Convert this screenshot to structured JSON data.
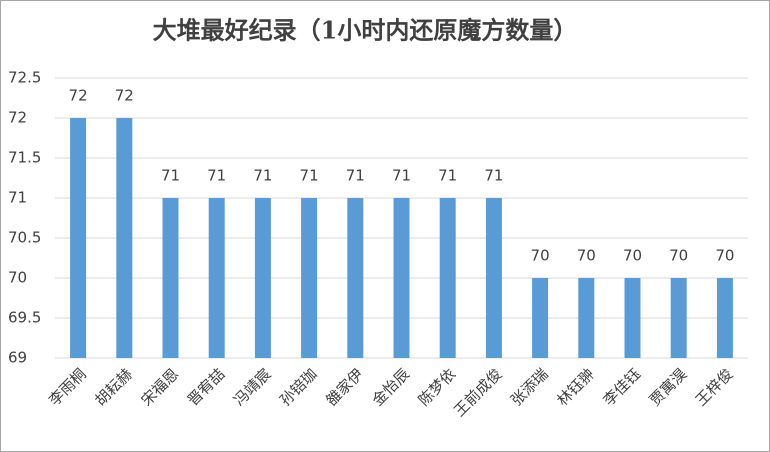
{
  "chart_data": {
    "type": "bar",
    "title": "大堆最好纪录（1小时内还原魔方数量）",
    "categories": [
      "李雨桐",
      "胡耘赫",
      "宋福恩",
      "晋宥喆",
      "冯靖宸",
      "孙锫珈",
      "雒家伊",
      "金怡辰",
      "陈梦依",
      "王前成俊",
      "张添瑞",
      "林钰翀",
      "李佳钰",
      "贾寓淏",
      "王梓俊"
    ],
    "values": [
      72,
      72,
      71,
      71,
      71,
      71,
      71,
      71,
      71,
      71,
      70,
      70,
      70,
      70,
      70
    ],
    "color": "#5b9bd5",
    "ylim": [
      69,
      72.5
    ],
    "yticks": [
      69,
      69.5,
      70,
      70.5,
      71,
      71.5,
      72,
      72.5
    ],
    "grid": true
  }
}
